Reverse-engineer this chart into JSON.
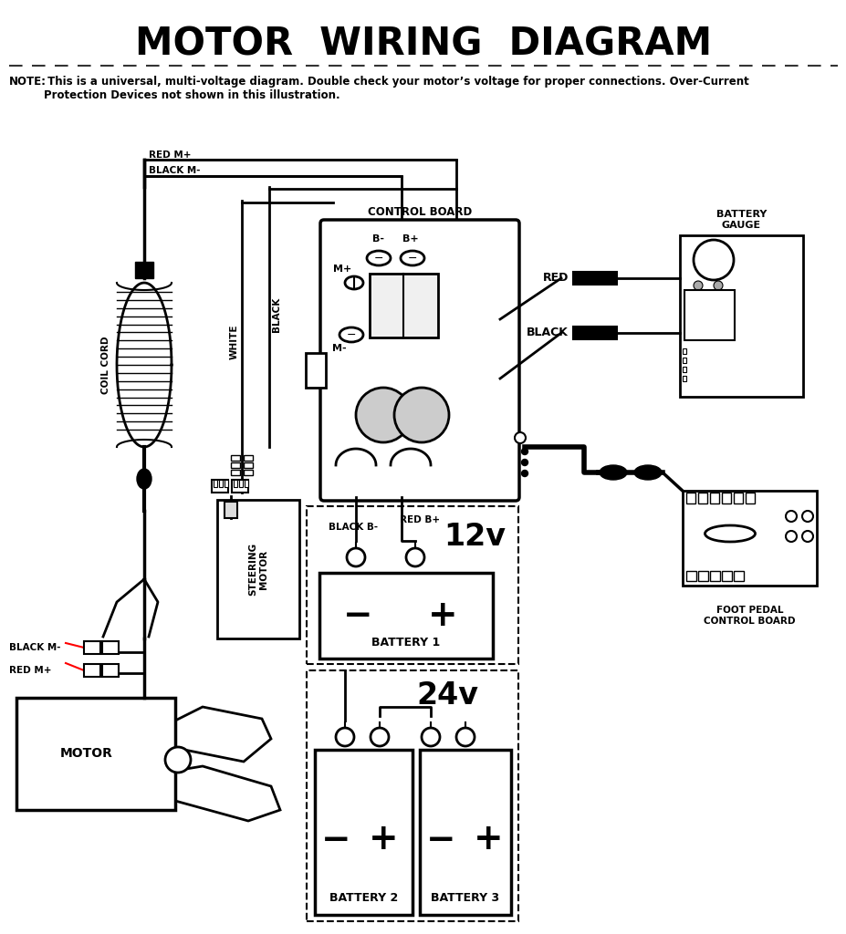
{
  "title": "MOTOR  WIRING  DIAGRAM",
  "note_bold": "NOTE:",
  "note_text": " This is a universal, multi-voltage diagram. Double check your motor’s voltage for proper connections. Over-Current\nProtection Devices not shown in this illustration.",
  "bg_color": "#ffffff",
  "line_color": "#000000",
  "fig_width": 9.28,
  "fig_height": 10.24
}
